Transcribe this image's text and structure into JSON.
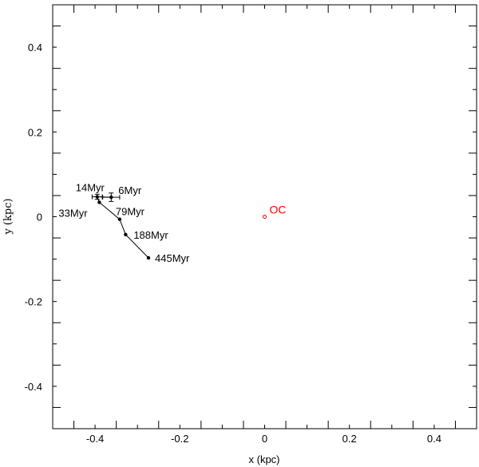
{
  "chart_data": {
    "type": "scatter",
    "title": "",
    "xlabel": "x (kpc)",
    "ylabel": "y (kpc)",
    "xlim": [
      -0.5,
      0.5
    ],
    "ylim": [
      -0.5,
      0.5
    ],
    "x_ticks": [
      -0.4,
      -0.2,
      0,
      0.2,
      0.4
    ],
    "x_tick_labels": [
      "-0.4",
      "-0.2",
      "0",
      "0.2",
      "0.4"
    ],
    "y_ticks": [
      -0.4,
      -0.2,
      0,
      0.2,
      0.4
    ],
    "y_tick_labels": [
      "-0.4",
      "-0.2",
      "0",
      "0.2",
      "0.4"
    ],
    "grid": false,
    "series": [
      {
        "color": "#000000",
        "connected": true,
        "points": [
          {
            "x": -0.362,
            "y": 0.046,
            "xerr": 0.02,
            "yerr": 0.01,
            "label": "6Myr"
          },
          {
            "x": -0.395,
            "y": 0.047,
            "xerr": 0.012,
            "yerr": 0.006,
            "label": "14Myr"
          },
          {
            "x": -0.39,
            "y": 0.034,
            "label": "33Myr"
          },
          {
            "x": -0.342,
            "y": -0.006,
            "label": "79Myr"
          },
          {
            "x": -0.328,
            "y": -0.042,
            "label": "188Myr"
          },
          {
            "x": -0.274,
            "y": -0.097,
            "label": "445Myr"
          }
        ]
      }
    ],
    "reference_point": {
      "x": 0.0,
      "y": 0.0,
      "label": "OC",
      "color": "#ff0000"
    }
  }
}
